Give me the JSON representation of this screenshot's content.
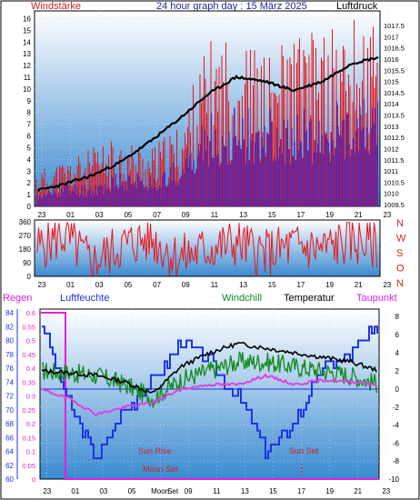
{
  "header": {
    "left_label": "Windstärke",
    "title": "24 hour graph day : 15 März 2025",
    "right_label": "Luftdruck"
  },
  "colors": {
    "background": "#ffffff",
    "plot_gradient_top": "#ffffff",
    "plot_gradient_bottom": "#2a80c8",
    "wind_red": "#e8141b",
    "wind_blue": "#1d33e6",
    "pressure_black": "#000000",
    "humidity_blue": "#1d33e6",
    "windchill_green": "#118a1c",
    "dewpoint_magenta": "#e040e0",
    "rain_magenta": "#e020e0",
    "label_red": "#cc2222",
    "header_blue": "#2222aa"
  },
  "top_chart": {
    "left_axis": [
      "16",
      "15",
      "14",
      "13",
      "12",
      "11",
      "10",
      "9",
      "8",
      "7",
      "6",
      "5",
      "4",
      "3",
      "2",
      "1",
      "0"
    ],
    "right_axis": [
      "1017.5",
      "1017",
      "1016.5",
      "1016",
      "1015.5",
      "1015",
      "1014.5",
      "1014",
      "1013.5",
      "1013",
      "1012.5",
      "1012",
      "1011.5",
      "1011",
      "1010.5",
      "1010",
      "1009.5"
    ],
    "x_ticks": [
      "23",
      "01",
      "03",
      "05",
      "07",
      "09",
      "11",
      "13",
      "15",
      "17",
      "19",
      "21",
      "23"
    ]
  },
  "mid_chart": {
    "left_axis": [
      "360",
      "270",
      "180",
      "90",
      "0"
    ],
    "compass": [
      "N",
      "W",
      "S",
      "O",
      "N"
    ],
    "x_ticks": [
      "23",
      "01",
      "03",
      "05",
      "07",
      "09",
      "11",
      "13",
      "15",
      "17",
      "19",
      "21",
      "23"
    ]
  },
  "bottom_chart": {
    "labels": {
      "rain": "Regen",
      "humidity": "Luftfeuchte",
      "windchill": "Windchill",
      "temperature": "Temperatur",
      "dewpoint": "Taupunkt",
      "sun_rise": "Sun Rise",
      "sun_set": "Sun Set",
      "moon_set": "Moon Set"
    },
    "humidity_axis": [
      "84",
      "82",
      "80",
      "78",
      "76",
      "74",
      "72",
      "70",
      "68",
      "66",
      "64",
      "62",
      "60"
    ],
    "rain_axis": [
      "0.6",
      "0.55",
      "0.5",
      "0.45",
      "0.4",
      "0.35",
      "0.3",
      "0.25",
      "0.2",
      "0.15",
      "0.1",
      "0.05",
      "0"
    ],
    "temp_axis": [
      "8",
      "6",
      "4",
      "2",
      "0",
      "-2",
      "-4",
      "-6",
      "-8",
      "-10"
    ],
    "x_ticks": [
      "23",
      "01",
      "03",
      "05",
      "Moon",
      "09",
      "11",
      "13",
      "15",
      "17",
      "19",
      "21",
      "23"
    ],
    "x_ticks_overlap": "Set"
  },
  "chart_data": [
    {
      "type": "line",
      "title": "24 hour graph day : 15 März 2025",
      "x_unit": "hour",
      "x": [
        22.5,
        24.5,
        26.5,
        28.5,
        30.5,
        32.5,
        34.5,
        36.5,
        38.5,
        40.5,
        42.5,
        44.5,
        46.5
      ],
      "series": [
        {
          "name": "Windstärke (gust max)",
          "axis": "left",
          "ylim": [
            0,
            16.5
          ],
          "values": [
            3,
            4,
            5,
            6,
            5,
            7,
            14,
            15,
            13,
            15,
            15,
            16,
            16
          ]
        },
        {
          "name": "Windstärke (avg)",
          "axis": "left",
          "ylim": [
            0,
            16.5
          ],
          "values": [
            1,
            2,
            2,
            3,
            3,
            4,
            8,
            9,
            9,
            8,
            9,
            10,
            9
          ]
        },
        {
          "name": "Luftdruck",
          "axis": "right",
          "ylim": [
            1009.5,
            1017.5
          ],
          "values": [
            1010.1,
            1010.4,
            1010.8,
            1011.4,
            1012.3,
            1013.3,
            1014.4,
            1015.2,
            1015.0,
            1014.6,
            1015.0,
            1015.8,
            1016.1
          ]
        }
      ]
    },
    {
      "type": "line",
      "y_unit": "degrees",
      "ylim": [
        0,
        360
      ],
      "x": [
        22.5,
        24.5,
        26.5,
        28.5,
        30.5,
        32.5,
        34.5,
        36.5,
        38.5,
        40.5,
        42.5,
        44.5,
        46.5
      ],
      "series": [
        {
          "name": "Windrichtung",
          "values": [
            180,
            270,
            90,
            200,
            250,
            120,
            180,
            220,
            150,
            200,
            180,
            240,
            200
          ]
        }
      ]
    },
    {
      "type": "line",
      "x": [
        22.5,
        24.5,
        26.5,
        28.5,
        30.5,
        32.5,
        34.5,
        36.5,
        38.5,
        40.5,
        42.5,
        44.5,
        46.5
      ],
      "series": [
        {
          "name": "Luftfeuchte",
          "axis": "humidity",
          "ylim": [
            60,
            84
          ],
          "values": [
            83,
            71,
            63,
            70,
            74,
            80,
            77,
            72,
            64,
            68,
            76,
            78,
            82
          ]
        },
        {
          "name": "Temperatur",
          "axis": "temp",
          "ylim": [
            -10,
            8
          ],
          "values": [
            2,
            1.8,
            1.5,
            0.8,
            -0.5,
            2.5,
            4,
            5,
            4.5,
            4,
            3.5,
            3,
            2
          ]
        },
        {
          "name": "Windchill",
          "axis": "temp",
          "ylim": [
            -10,
            8
          ],
          "values": [
            2,
            1.8,
            1.5,
            0.5,
            -1,
            1,
            2,
            3,
            3,
            2.5,
            2,
            1.5,
            0.5
          ]
        },
        {
          "name": "Taupunkt",
          "axis": "temp",
          "ylim": [
            -10,
            8
          ],
          "values": [
            0,
            -1,
            -2.8,
            -2,
            -1.5,
            0,
            0.5,
            0.5,
            1.5,
            0.5,
            1,
            0.8,
            0.5
          ]
        },
        {
          "name": "Regen",
          "axis": "rain",
          "ylim": [
            0,
            0.6
          ],
          "values": [
            0.6,
            0,
            0,
            0,
            0,
            0,
            0,
            0,
            0,
            0,
            0,
            0,
            0
          ]
        }
      ]
    }
  ]
}
